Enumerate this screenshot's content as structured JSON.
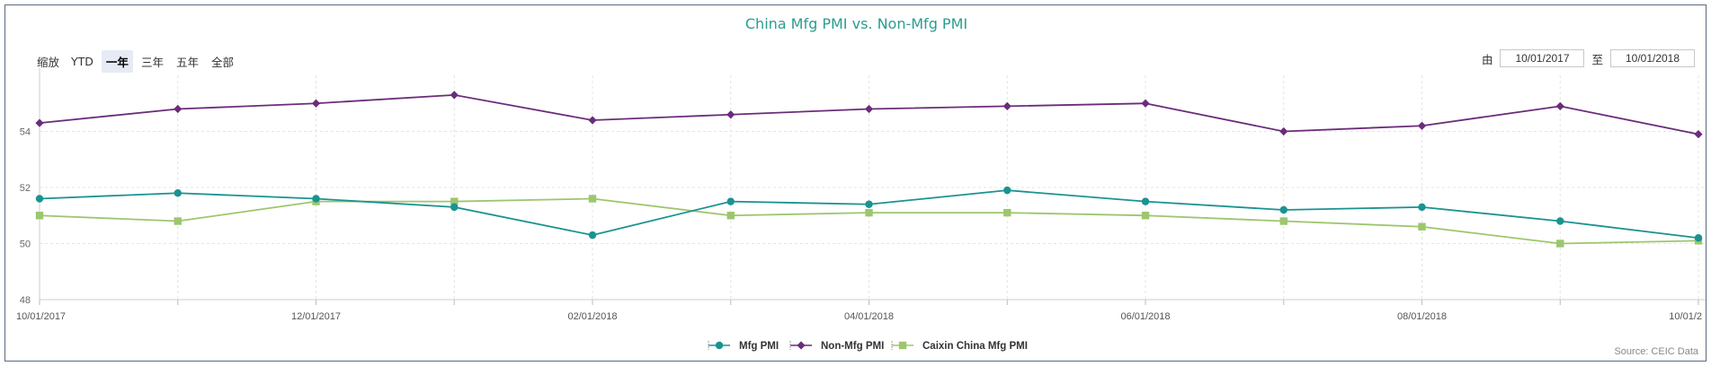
{
  "chart_title": "China Mfg PMI vs. Non-Mfg PMI",
  "zoom": {
    "label": "缩放",
    "buttons": [
      "YTD",
      "一年",
      "三年",
      "五年",
      "全部"
    ],
    "active": "一年"
  },
  "range": {
    "from_label": "由",
    "from_value": "10/01/2017",
    "to_label": "至",
    "to_value": "10/01/2018"
  },
  "source": "Source: CEIC Data",
  "chart_data": {
    "type": "line",
    "title": "China Mfg PMI vs. Non-Mfg PMI",
    "x": [
      "2017-10",
      "2017-11",
      "2017-12",
      "2018-01",
      "2018-02",
      "2018-03",
      "2018-04",
      "2018-05",
      "2018-06",
      "2018-07",
      "2018-08",
      "2018-09",
      "2018-10"
    ],
    "xticks": [
      "10/01/2017",
      "12/01/2017",
      "02/01/2018",
      "04/01/2018",
      "06/01/2018",
      "08/01/2018",
      "10/01/2"
    ],
    "yticks": [
      "48",
      "50",
      "52",
      "54"
    ],
    "ylim": [
      48,
      56
    ],
    "grid": true,
    "legend_position": "bottom-center",
    "series": [
      {
        "name": "Mfg PMI",
        "color": "#1a9391",
        "marker": "circle",
        "values": [
          51.6,
          51.8,
          51.6,
          51.3,
          50.3,
          51.5,
          51.4,
          51.9,
          51.5,
          51.2,
          51.3,
          50.8,
          50.2
        ]
      },
      {
        "name": "Non-Mfg PMI",
        "color": "#6b2c7a",
        "marker": "diamond",
        "values": [
          54.3,
          54.8,
          55.0,
          55.3,
          54.4,
          54.6,
          54.8,
          54.9,
          55.0,
          54.0,
          54.2,
          54.9,
          53.9
        ]
      },
      {
        "name": "Caixin China Mfg PMI",
        "color": "#9dc66e",
        "marker": "square",
        "values": [
          51.0,
          50.8,
          51.5,
          51.5,
          51.6,
          51.0,
          51.1,
          51.1,
          51.0,
          50.8,
          50.6,
          50.0,
          50.1
        ]
      }
    ]
  }
}
